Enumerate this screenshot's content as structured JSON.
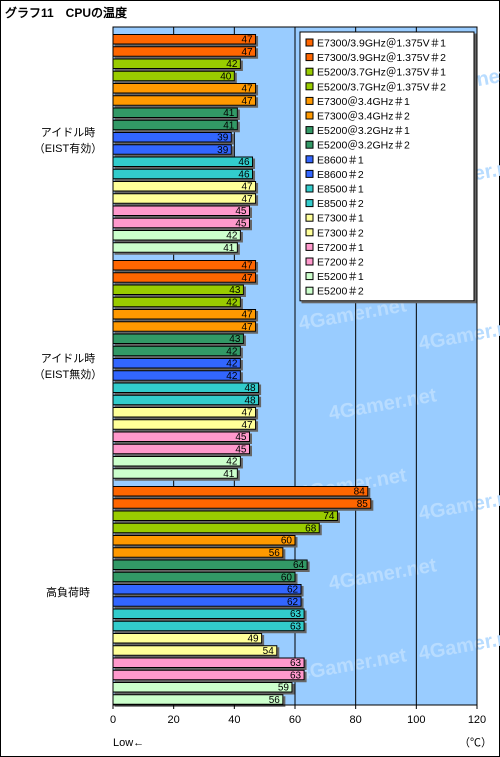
{
  "title": "グラフ11　CPUの温度",
  "chart_data": {
    "type": "bar",
    "orientation": "horizontal",
    "xlim": [
      0,
      120
    ],
    "xticks": [
      0,
      20,
      40,
      60,
      80,
      100,
      120
    ],
    "xunit": "（℃）",
    "xnote": "Low←",
    "watermark": "4Gamer.net",
    "plot_background": "#99ccff",
    "grid": true,
    "legend_position": "right",
    "series": [
      {
        "name": "E7300/3.9GHz＠1.375V＃1",
        "color": "#ff6600"
      },
      {
        "name": "E7300/3.9GHz＠1.375V＃2",
        "color": "#ff6600"
      },
      {
        "name": "E5200/3.7GHz＠1.375V＃1",
        "color": "#99cc00"
      },
      {
        "name": "E5200/3.7GHz＠1.375V＃2",
        "color": "#99cc00"
      },
      {
        "name": "E7300＠3.4GHz＃1",
        "color": "#ff9900"
      },
      {
        "name": "E7300＠3.4GHz＃2",
        "color": "#ff9900"
      },
      {
        "name": "E5200＠3.2GHz＃1",
        "color": "#339966"
      },
      {
        "name": "E5200＠3.2GHz＃2",
        "color": "#339966"
      },
      {
        "name": "E8600＃1",
        "color": "#3366ff"
      },
      {
        "name": "E8600＃2",
        "color": "#3366ff"
      },
      {
        "name": "E8500＃1",
        "color": "#33cccc"
      },
      {
        "name": "E8500＃2",
        "color": "#33cccc"
      },
      {
        "name": "E7300＃1",
        "color": "#ffff99"
      },
      {
        "name": "E7300＃2",
        "color": "#ffff99"
      },
      {
        "name": "E7200＃1",
        "color": "#ff99cc"
      },
      {
        "name": "E7200＃2",
        "color": "#ff99cc"
      },
      {
        "name": "E5200＃1",
        "color": "#ccffcc"
      },
      {
        "name": "E5200＃2",
        "color": "#ccffcc"
      }
    ],
    "groups": [
      {
        "label": [
          "アイドル時",
          "（EIST有効）"
        ],
        "values": [
          47,
          47,
          42,
          40,
          47,
          47,
          41,
          41,
          39,
          39,
          46,
          46,
          47,
          47,
          45,
          45,
          42,
          41
        ]
      },
      {
        "label": [
          "アイドル時",
          "（EIST無効）"
        ],
        "values": [
          47,
          47,
          43,
          42,
          47,
          47,
          43,
          42,
          42,
          42,
          48,
          48,
          47,
          47,
          45,
          45,
          42,
          41
        ]
      },
      {
        "label": [
          "高負荷時"
        ],
        "values": [
          84,
          85,
          74,
          68,
          60,
          56,
          64,
          60,
          62,
          62,
          63,
          63,
          49,
          54,
          63,
          63,
          59,
          56
        ]
      }
    ]
  }
}
